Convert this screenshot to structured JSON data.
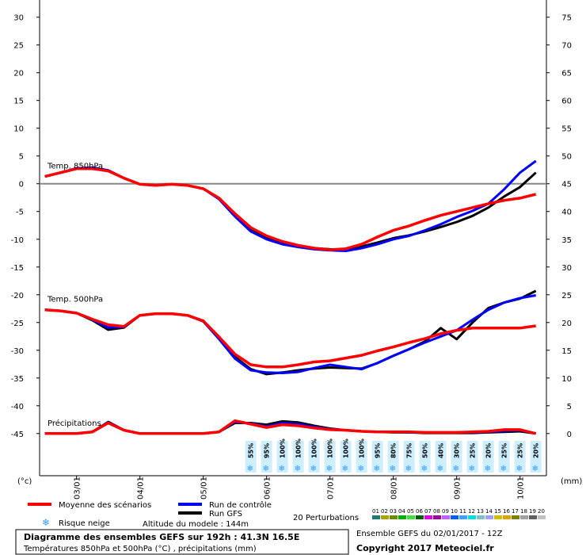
{
  "chart_data": {
    "type": "line",
    "title": "Diagramme des ensembles GEFS sur 192h : 41.3N 16.5E",
    "subtitle": "Températures 850hPa et 500hPa (°C) , précipitations (mm)",
    "run_label": "Ensemble GEFS du 02/01/2017 - 12Z",
    "copyright": "Copyright 2017 Meteociel.fr",
    "y_label": "(°c)",
    "y2_label": "(mm)",
    "altitude": "Altitude du modele : 144m",
    "xlim": [
      -2,
      190
    ],
    "xticks": [
      {
        "value": 12,
        "label": "03/01"
      },
      {
        "value": 36,
        "label": "04/01"
      },
      {
        "value": 60,
        "label": "05/01"
      },
      {
        "value": 84,
        "label": "06/01"
      },
      {
        "value": 108,
        "label": "07/01"
      },
      {
        "value": 132,
        "label": "08/01"
      },
      {
        "value": 156,
        "label": "09/01"
      },
      {
        "value": 180,
        "label": "10/01"
      }
    ],
    "ylim": [
      -52.6,
      33.1
    ],
    "yticks": [
      30,
      25,
      20,
      15,
      10,
      5,
      0,
      -5,
      -10,
      -15,
      -20,
      -25,
      -30,
      -35,
      -40,
      -45
    ],
    "y2lim": [
      -7.6,
      78.1
    ],
    "y2ticks": [
      75,
      70,
      65,
      60,
      55,
      50,
      45,
      40,
      35,
      30,
      25,
      20,
      15,
      10,
      5,
      0
    ],
    "x": [
      0,
      6,
      12,
      18,
      24,
      30,
      36,
      42,
      48,
      54,
      60,
      66,
      72,
      78,
      84,
      90,
      96,
      102,
      108,
      114,
      120,
      126,
      132,
      138,
      144,
      150,
      156,
      162,
      168,
      174,
      180,
      186
    ],
    "legend": [
      {
        "name": "Moyenne des scénarios",
        "color": "#ff0000"
      },
      {
        "name": "Run de contrôle",
        "color": "#0000ff"
      },
      {
        "name": "Run GFS",
        "color": "#000000"
      }
    ],
    "panels": [
      {
        "label": "Temp. 850hPa",
        "axis": "y",
        "series": [
          {
            "color": "#000000",
            "values": [
              1.3,
              2,
              2.7,
              2.9,
              2.4,
              1,
              -0.1,
              -0.3,
              -0.1,
              -0.3,
              -0.9,
              -2.6,
              -5.6,
              -8.3,
              -9.8,
              -10.8,
              -11.3,
              -11.6,
              -11.8,
              -11.9,
              -11.3,
              -10.6,
              -9.8,
              -9.3,
              -8.6,
              -7.8,
              -6.9,
              -5.8,
              -4.3,
              -2.3,
              -0.6,
              2
            ]
          },
          {
            "color": "#0000ff",
            "values": [
              1.3,
              2,
              2.8,
              2.9,
              2.4,
              1,
              -0.1,
              -0.3,
              -0.1,
              -0.3,
              -0.9,
              -2.8,
              -5.9,
              -8.6,
              -10,
              -10.9,
              -11.4,
              -11.8,
              -12,
              -12.1,
              -11.6,
              -10.9,
              -10,
              -9.4,
              -8.4,
              -7.3,
              -6,
              -4.9,
              -3.6,
              -1,
              2,
              4.1
            ]
          },
          {
            "color": "#ff0000",
            "values": [
              1.3,
              2,
              2.7,
              2.7,
              2.3,
              1,
              -0.1,
              -0.3,
              -0.1,
              -0.3,
              -0.9,
              -2.6,
              -5.4,
              -7.9,
              -9.4,
              -10.4,
              -11.1,
              -11.6,
              -11.9,
              -11.7,
              -10.9,
              -9.6,
              -8.4,
              -7.6,
              -6.6,
              -5.7,
              -5,
              -4.3,
              -3.6,
              -3,
              -2.6,
              -1.9
            ]
          }
        ]
      },
      {
        "label": "Temp. 500hPa",
        "axis": "y",
        "series": [
          {
            "color": "#000000",
            "values": [
              -22.7,
              -22.9,
              -23.3,
              -24.6,
              -26.3,
              -25.9,
              -23.7,
              -23.4,
              -23.4,
              -23.7,
              -24.7,
              -27.8,
              -31.2,
              -33.4,
              -34.3,
              -34,
              -33.6,
              -33.3,
              -33.1,
              -33.2,
              -33.3,
              -32.3,
              -31,
              -29.8,
              -28.4,
              -26,
              -28,
              -25,
              -22.4,
              -21.4,
              -20.7,
              -19.3
            ]
          },
          {
            "color": "#0000ff",
            "values": [
              -22.7,
              -22.9,
              -23.3,
              -24.5,
              -25.9,
              -25.8,
              -23.7,
              -23.4,
              -23.4,
              -23.7,
              -24.8,
              -28,
              -31.5,
              -33.6,
              -34,
              -34.1,
              -33.9,
              -33.2,
              -32.6,
              -33,
              -33.4,
              -32.3,
              -31,
              -29.8,
              -28.6,
              -27.5,
              -26.4,
              -24.5,
              -22.7,
              -21.4,
              -20.6,
              -20.1
            ]
          },
          {
            "color": "#ff0000",
            "values": [
              -22.7,
              -22.9,
              -23.3,
              -24.4,
              -25.4,
              -25.7,
              -23.7,
              -23.4,
              -23.4,
              -23.7,
              -24.7,
              -27.6,
              -30.7,
              -32.6,
              -33,
              -33,
              -32.6,
              -32.1,
              -31.9,
              -31.4,
              -30.9,
              -30.1,
              -29.4,
              -28.6,
              -27.9,
              -27,
              -26.4,
              -26,
              -26,
              -26,
              -26,
              -25.6
            ]
          }
        ]
      },
      {
        "label": "Précipitations",
        "axis": "y2",
        "series": [
          {
            "color": "#000000",
            "values": [
              0,
              0,
              0,
              0.3,
              2.1,
              0.6,
              0,
              0,
              0,
              0,
              0,
              0.3,
              1.9,
              1.9,
              1.6,
              2.2,
              2,
              1.4,
              0.9,
              0.6,
              0.4,
              0.3,
              0.2,
              0.2,
              0.1,
              0.1,
              0.1,
              0.1,
              0.2,
              0.3,
              0.4,
              0
            ]
          },
          {
            "color": "#0000ff",
            "values": [
              0,
              0,
              0,
              0.3,
              2,
              0.6,
              0,
              0,
              0,
              0,
              0,
              0.3,
              2.1,
              1.8,
              1.3,
              1.9,
              1.7,
              1.2,
              0.8,
              0.6,
              0.4,
              0.3,
              0.3,
              0.2,
              0.2,
              0.2,
              0.2,
              0.2,
              0.3,
              0.5,
              0.6,
              0
            ]
          },
          {
            "color": "#ff0000",
            "values": [
              0,
              0,
              0,
              0.3,
              1.9,
              0.6,
              0,
              0,
              0,
              0,
              0,
              0.3,
              2.3,
              1.7,
              1.1,
              1.6,
              1.4,
              1,
              0.7,
              0.6,
              0.4,
              0.3,
              0.3,
              0.3,
              0.2,
              0.2,
              0.2,
              0.3,
              0.4,
              0.7,
              0.7,
              0
            ]
          }
        ]
      }
    ],
    "snow_risk": {
      "label": "Risque neige",
      "x": [
        78,
        84,
        90,
        96,
        102,
        108,
        114,
        120,
        126,
        132,
        138,
        144,
        150,
        156,
        162,
        168,
        174,
        180,
        186
      ],
      "values": [
        55,
        95,
        100,
        100,
        100,
        100,
        100,
        100,
        95,
        80,
        75,
        50,
        40,
        30,
        25,
        20,
        25,
        25,
        20
      ],
      "value_labels": [
        "55%",
        "95%",
        "100%",
        "100%",
        "100%",
        "100%",
        "100%",
        "100%",
        "95%",
        "80%",
        "75%",
        "50%",
        "40%",
        "30%",
        "25%",
        "20%",
        "25%",
        "25%",
        "20%"
      ]
    },
    "perturbations": {
      "label": "20 Perturbations",
      "names": [
        "01",
        "02",
        "03",
        "04",
        "05",
        "06",
        "07",
        "08",
        "09",
        "10",
        "11",
        "12",
        "13",
        "14",
        "15",
        "16",
        "17",
        "18",
        "19",
        "20"
      ],
      "colors": [
        "#1a7a7a",
        "#b0a000",
        "#6a8a00",
        "#00b000",
        "#40e040",
        "#006000",
        "#e000e0",
        "#a000a0",
        "#c060ff",
        "#0060ff",
        "#40a0ff",
        "#00e0e0",
        "#80c0c0",
        "#a0a0ff",
        "#d0c000",
        "#e0a000",
        "#808000",
        "#a0a0a0",
        "#606060",
        "#c0c0c0"
      ]
    }
  }
}
